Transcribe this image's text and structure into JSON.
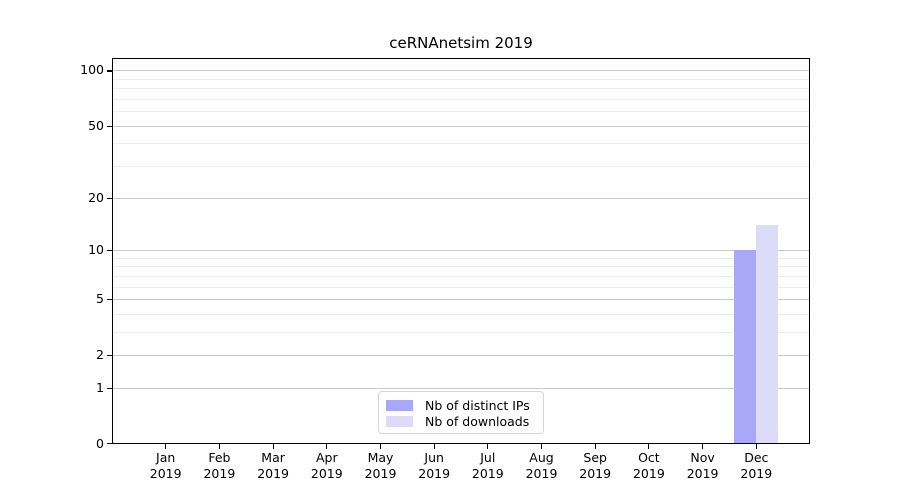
{
  "chart_data": {
    "type": "bar",
    "title": "ceRNAnetsim 2019",
    "categories": [
      "Jan 2019",
      "Feb 2019",
      "Mar 2019",
      "Apr 2019",
      "May 2019",
      "Jun 2019",
      "Jul 2019",
      "Aug 2019",
      "Sep 2019",
      "Oct 2019",
      "Nov 2019",
      "Dec 2019"
    ],
    "series": [
      {
        "name": "Nb of distinct IPs",
        "color": "#a8a8f8",
        "values": [
          0,
          0,
          0,
          0,
          0,
          0,
          0,
          0,
          0,
          0,
          0,
          10
        ]
      },
      {
        "name": "Nb of downloads",
        "color": "#dcdcf8",
        "values": [
          0,
          0,
          0,
          0,
          0,
          0,
          0,
          0,
          0,
          0,
          0,
          14
        ]
      }
    ],
    "xlabel": "",
    "ylabel": "",
    "yscale": "log1p",
    "ylim": [
      0,
      115
    ],
    "y_major_ticks": [
      0,
      1,
      2,
      5,
      10,
      20,
      50,
      100
    ],
    "y_minor_gridlines": [
      3,
      4,
      6,
      7,
      8,
      9,
      30,
      40,
      60,
      70,
      80,
      90
    ],
    "grid": true,
    "legend_position": "lower center"
  },
  "colors": {
    "grid_major": "#c9c9c9",
    "grid_minor": "#ededed",
    "spine": "#000000",
    "legend_border": "#d4d4d4"
  }
}
